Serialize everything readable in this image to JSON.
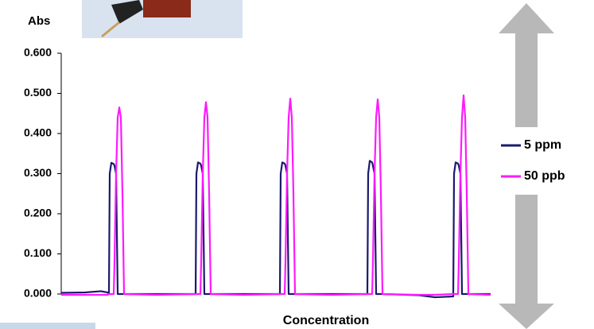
{
  "chart_data": {
    "type": "line",
    "y_label": "Abs",
    "x_label": "Concentration",
    "x": [
      0,
      30,
      50,
      58,
      60,
      61,
      63,
      66,
      67,
      69,
      71,
      73,
      75,
      77,
      79,
      120,
      169,
      170,
      172,
      175,
      176,
      178,
      180,
      182,
      184,
      186,
      188,
      230,
      275,
      276,
      278,
      281,
      282,
      284,
      286,
      288,
      290,
      292,
      294,
      340,
      385,
      386,
      388,
      391,
      392,
      394,
      396,
      398,
      400,
      402,
      404,
      450,
      470,
      493,
      494,
      496,
      499,
      500,
      502,
      504,
      506,
      508,
      510,
      512,
      540
    ],
    "xlim": [
      0,
      540
    ],
    "series": [
      {
        "name": "5 ppm",
        "color": "#1a1a6e",
        "values": [
          0.003,
          0.004,
          0.007,
          0.004,
          0.002,
          0.3,
          0.327,
          0.324,
          0.32,
          0.3,
          0.0,
          0.0,
          0.0,
          0.0,
          0.0,
          0.0,
          0.0,
          0.3,
          0.328,
          0.325,
          0.32,
          0.3,
          0.0,
          0.0,
          0.0,
          0.0,
          0.0,
          0.0,
          0.0,
          0.3,
          0.328,
          0.325,
          0.32,
          0.3,
          0.0,
          0.0,
          0.0,
          0.0,
          0.0,
          0.0,
          0.0,
          0.3,
          0.332,
          0.328,
          0.32,
          0.3,
          0.0,
          0.0,
          0.0,
          0.0,
          0.0,
          -0.003,
          -0.008,
          -0.006,
          0.3,
          0.328,
          0.325,
          0.32,
          0.3,
          0.0,
          0.0,
          0.0,
          0.0,
          0.0,
          0.0
        ]
      },
      {
        "name": "50 ppb",
        "color": "#ff1aff",
        "values": [
          -0.002,
          -0.002,
          -0.002,
          -0.002,
          0.0,
          0.0,
          0.0,
          0.0,
          0.08,
          0.3,
          0.44,
          0.465,
          0.44,
          0.25,
          0.0,
          -0.002,
          0.0,
          0.0,
          0.0,
          0.0,
          0.08,
          0.3,
          0.44,
          0.478,
          0.44,
          0.25,
          0.0,
          -0.002,
          0.0,
          0.0,
          0.0,
          0.0,
          0.08,
          0.3,
          0.44,
          0.487,
          0.44,
          0.25,
          0.0,
          -0.002,
          0.0,
          0.0,
          0.0,
          0.0,
          0.08,
          0.3,
          0.44,
          0.485,
          0.44,
          0.25,
          0.0,
          -0.002,
          -0.002,
          0.0,
          0.0,
          0.0,
          0.0,
          0.08,
          0.3,
          0.44,
          0.495,
          0.44,
          0.25,
          0.0,
          -0.002
        ]
      }
    ],
    "ylim": [
      0,
      0.6
    ],
    "yticks": [
      {
        "value": 0,
        "label": "0.000"
      },
      {
        "value": 0.1,
        "label": "0.100"
      },
      {
        "value": 0.2,
        "label": "0.200"
      },
      {
        "value": 0.3,
        "label": "0.300"
      },
      {
        "value": 0.4,
        "label": "0.400"
      },
      {
        "value": 0.5,
        "label": "0.500"
      },
      {
        "value": 0.6,
        "label": "0.600"
      }
    ],
    "legend": "right"
  }
}
